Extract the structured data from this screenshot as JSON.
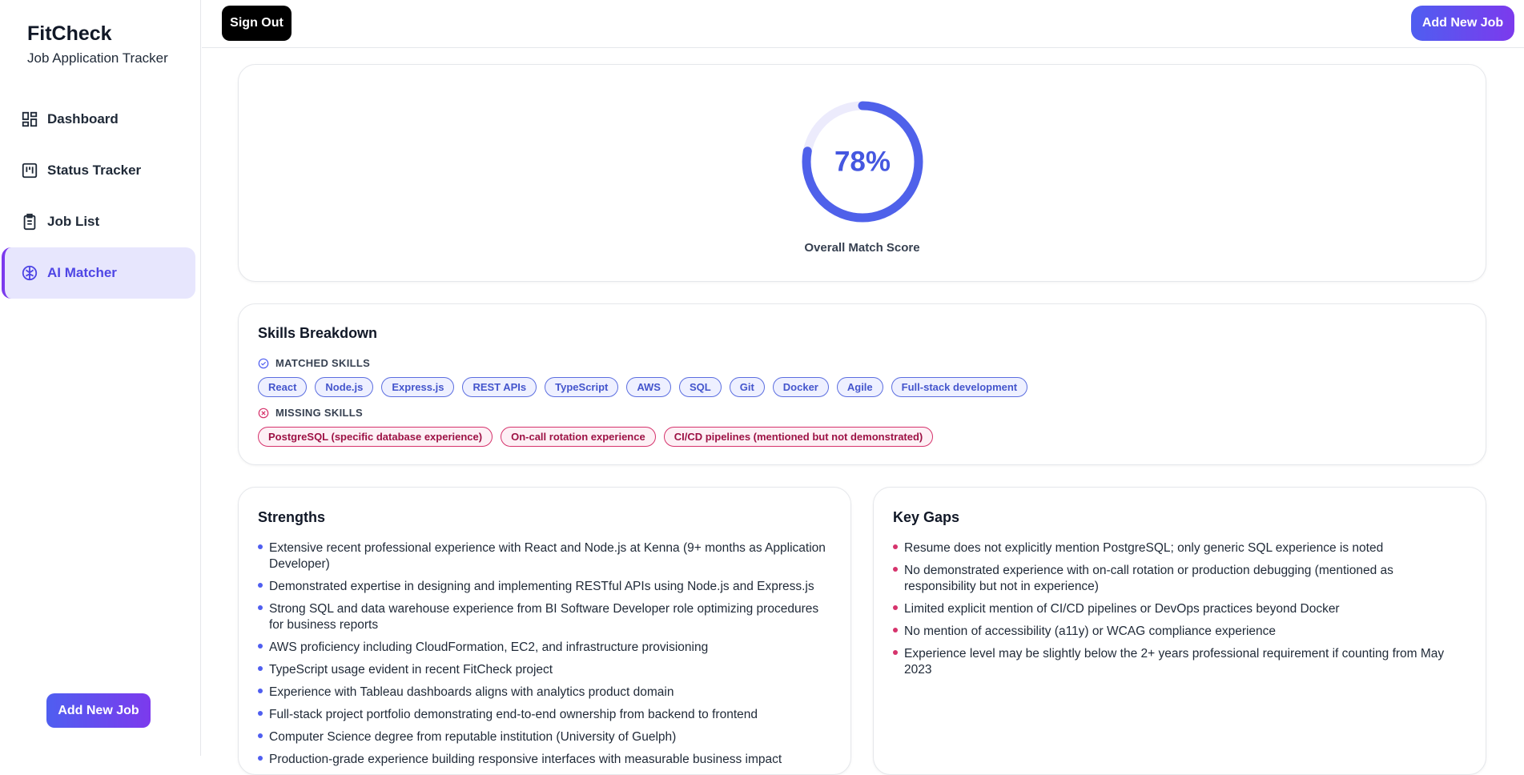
{
  "sidebar": {
    "title": "FitCheck",
    "subtitle": "Job Application Tracker",
    "nav": [
      "Dashboard",
      "Status Tracker",
      "Job List",
      "AI Matcher"
    ],
    "button": "Add New Job"
  },
  "topbar": {
    "sign_out": "Sign Out",
    "add_new_job": "Add New Job"
  },
  "score_card": {
    "score": {
      "value": 78,
      "label": "78%"
    },
    "caption": "Overall Match Score"
  },
  "skills": {
    "title": "Skills Breakdown",
    "matched_label": "MATCHED SKILLS",
    "matched": [
      "React",
      "Node.js",
      "Express.js",
      "REST APIs",
      "TypeScript",
      "AWS",
      "SQL",
      "Git",
      "Docker",
      "Agile",
      "Full-stack development"
    ],
    "missing_label": "MISSING SKILLS",
    "missing": [
      "PostgreSQL (specific database experience)",
      "On-call rotation experience",
      "CI/CD pipelines (mentioned but not demonstrated)"
    ]
  },
  "strengths": {
    "title": "Strengths",
    "items": [
      "Extensive recent professional experience with React and Node.js at Kenna (9+ months as Application Developer)",
      "Demonstrated expertise in designing and implementing RESTful APIs using Node.js and Express.js",
      "Strong SQL and data warehouse experience from BI Software Developer role optimizing procedures for business reports",
      "AWS proficiency including CloudFormation, EC2, and infrastructure provisioning",
      "TypeScript usage evident in recent FitCheck project",
      "Experience with Tableau dashboards aligns with analytics product domain",
      "Full-stack project portfolio demonstrating end-to-end ownership from backend to frontend",
      "Computer Science degree from reputable institution (University of Guelph)",
      "Production-grade experience building responsive interfaces with measurable business impact"
    ]
  },
  "gaps": {
    "title": "Key Gaps",
    "items": [
      "Resume does not explicitly mention PostgreSQL; only generic SQL experience is noted",
      "No demonstrated experience with on-call rotation or production debugging (mentioned as responsibility but not in experience)",
      "Limited explicit mention of CI/CD pipelines or DevOps practices beyond Docker",
      "No mention of accessibility (a11y) or WCAG compliance experience",
      "Experience level may be slightly below the 2+ years professional requirement if counting from May 2023"
    ]
  }
}
